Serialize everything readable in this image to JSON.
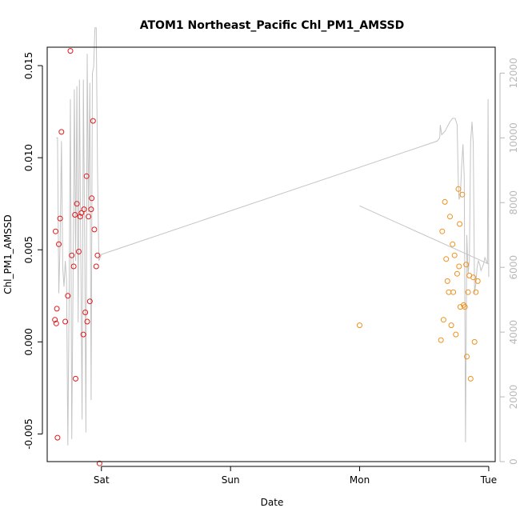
{
  "chart_data": {
    "type": "scatter",
    "title": "ATOM1 Northeast_Pacific Chl_PM1_AMSSD",
    "xlabel": "Date",
    "ylabel": "Chl_PM1_AMSSD",
    "x_unit": "days",
    "xlim": [
      -0.42,
      3.05
    ],
    "ylim": [
      -0.0065,
      0.016
    ],
    "y2lim": [
      0,
      12800
    ],
    "x_ticks": [
      {
        "value": 0,
        "label": "Sat"
      },
      {
        "value": 1,
        "label": "Sun"
      },
      {
        "value": 2,
        "label": "Mon"
      },
      {
        "value": 3,
        "label": "Tue"
      }
    ],
    "y_ticks": [
      -0.005,
      0.0,
      0.005,
      0.01,
      0.015
    ],
    "y_tick_labels": [
      "-0.005",
      "0.000",
      "0.005",
      "0.010",
      "0.015"
    ],
    "y2_ticks": [
      0,
      2000,
      4000,
      6000,
      8000,
      10000,
      12000
    ],
    "y2_tick_labels": [
      "0",
      "2000",
      "4000",
      "6000",
      "8000",
      "10000",
      "12000"
    ],
    "colors": {
      "series_1": "#e0191b",
      "series_2": "#f0901c",
      "secondary_line": "#c4c4c4",
      "axis": "#000000",
      "axis_right": "#b8b8b8"
    },
    "series": [
      {
        "color": "#e0191b",
        "points": [
          [
            -0.36,
            0.0012
          ],
          [
            -0.355,
            0.006
          ],
          [
            -0.35,
            0.001
          ],
          [
            -0.345,
            0.0018
          ],
          [
            -0.34,
            -0.0052
          ],
          [
            -0.33,
            0.0053
          ],
          [
            -0.32,
            0.0067
          ],
          [
            -0.31,
            0.0114
          ],
          [
            -0.28,
            0.0011
          ],
          [
            -0.26,
            0.0025
          ],
          [
            -0.24,
            0.0158
          ],
          [
            -0.23,
            0.0047
          ],
          [
            -0.215,
            0.0041
          ],
          [
            -0.205,
            0.0069
          ],
          [
            -0.2,
            -0.002
          ],
          [
            -0.19,
            0.0075
          ],
          [
            -0.175,
            0.0049
          ],
          [
            -0.165,
            0.0068
          ],
          [
            -0.155,
            0.007
          ],
          [
            -0.14,
            0.0004
          ],
          [
            -0.135,
            0.0072
          ],
          [
            -0.125,
            0.0016
          ],
          [
            -0.115,
            0.009
          ],
          [
            -0.11,
            0.0011
          ],
          [
            -0.1,
            0.0068
          ],
          [
            -0.09,
            0.0022
          ],
          [
            -0.08,
            0.0072
          ],
          [
            -0.075,
            0.0078
          ],
          [
            -0.065,
            0.012
          ],
          [
            -0.055,
            0.0061
          ],
          [
            -0.04,
            0.0041
          ],
          [
            -0.03,
            0.0047
          ],
          [
            -0.015,
            -0.0066
          ]
        ]
      },
      {
        "color": "#f0901c",
        "points": [
          [
            2.0,
            0.0009
          ],
          [
            2.63,
            0.0001
          ],
          [
            2.64,
            0.006
          ],
          [
            2.65,
            0.0012
          ],
          [
            2.66,
            0.0076
          ],
          [
            2.67,
            0.0045
          ],
          [
            2.68,
            0.0033
          ],
          [
            2.69,
            0.0027
          ],
          [
            2.7,
            0.0068
          ],
          [
            2.71,
            0.0009
          ],
          [
            2.72,
            0.0053
          ],
          [
            2.725,
            0.0027
          ],
          [
            2.735,
            0.0047
          ],
          [
            2.745,
            0.0004
          ],
          [
            2.755,
            0.0037
          ],
          [
            2.765,
            0.0083
          ],
          [
            2.77,
            0.0041
          ],
          [
            2.775,
            0.0064
          ],
          [
            2.78,
            0.0019
          ],
          [
            2.795,
            0.008
          ],
          [
            2.805,
            0.002
          ],
          [
            2.815,
            0.0019
          ],
          [
            2.825,
            0.0042
          ],
          [
            2.83,
            -0.0008
          ],
          [
            2.84,
            0.0027
          ],
          [
            2.85,
            0.0036
          ],
          [
            2.86,
            -0.002
          ],
          [
            2.88,
            0.0035
          ],
          [
            2.89,
            0.0
          ],
          [
            2.9,
            0.0027
          ],
          [
            2.915,
            0.0033
          ]
        ]
      }
    ],
    "secondary_series": {
      "color": "#c4c4c4",
      "axis": "right",
      "points": [
        [
          -0.35,
          10000
        ],
        [
          -0.34,
          10000
        ],
        [
          -0.33,
          5200
        ],
        [
          -0.32,
          6700
        ],
        [
          -0.31,
          9900
        ],
        [
          -0.3,
          6000
        ],
        [
          -0.29,
          5400
        ],
        [
          -0.28,
          6200
        ],
        [
          -0.27,
          5600
        ],
        [
          -0.26,
          500
        ],
        [
          -0.25,
          5000
        ],
        [
          -0.24,
          11200
        ],
        [
          -0.23,
          700
        ],
        [
          -0.22,
          5500
        ],
        [
          -0.21,
          11500
        ],
        [
          -0.2,
          6200
        ],
        [
          -0.19,
          11600
        ],
        [
          -0.18,
          4300
        ],
        [
          -0.17,
          11800
        ],
        [
          -0.16,
          6400
        ],
        [
          -0.15,
          1300
        ],
        [
          -0.14,
          11800
        ],
        [
          -0.13,
          7000
        ],
        [
          -0.12,
          900
        ],
        [
          -0.11,
          12600
        ],
        [
          -0.1,
          7700
        ],
        [
          -0.09,
          11700
        ],
        [
          -0.08,
          1900
        ],
        [
          -0.07,
          12000
        ],
        [
          -0.06,
          12200
        ],
        [
          -0.05,
          13400
        ],
        [
          -0.04,
          13400
        ],
        [
          -0.03,
          9000
        ],
        [
          -0.02,
          6200
        ],
        [
          0.0,
          6400
        ],
        [
          2.6,
          9900
        ],
        [
          2.62,
          10000
        ],
        [
          2.625,
          10400
        ],
        [
          2.635,
          10100
        ],
        [
          2.66,
          10200
        ],
        [
          2.7,
          10500
        ],
        [
          2.72,
          10600
        ],
        [
          2.74,
          10600
        ],
        [
          2.755,
          10400
        ],
        [
          2.765,
          8500
        ],
        [
          2.77,
          8100
        ],
        [
          2.78,
          8200
        ],
        [
          2.79,
          9100
        ],
        [
          2.8,
          9800
        ],
        [
          2.81,
          8800
        ],
        [
          2.82,
          600
        ],
        [
          2.83,
          7000
        ],
        [
          2.84,
          5800
        ],
        [
          2.85,
          6200
        ],
        [
          2.86,
          9900
        ],
        [
          2.87,
          10500
        ],
        [
          2.88,
          9800
        ],
        [
          2.89,
          5200
        ],
        [
          2.9,
          5500
        ],
        [
          2.91,
          6000
        ],
        [
          2.92,
          6200
        ],
        [
          2.93,
          6100
        ],
        [
          2.94,
          5900
        ],
        [
          2.95,
          6000
        ],
        [
          2.96,
          6100
        ],
        [
          2.97,
          6300
        ],
        [
          2.98,
          6200
        ],
        [
          2.99,
          6100
        ],
        [
          2.995,
          11200
        ],
        [
          3.0,
          5700
        ],
        [
          3.0,
          6100
        ],
        [
          2.0,
          7900
        ]
      ]
    }
  }
}
